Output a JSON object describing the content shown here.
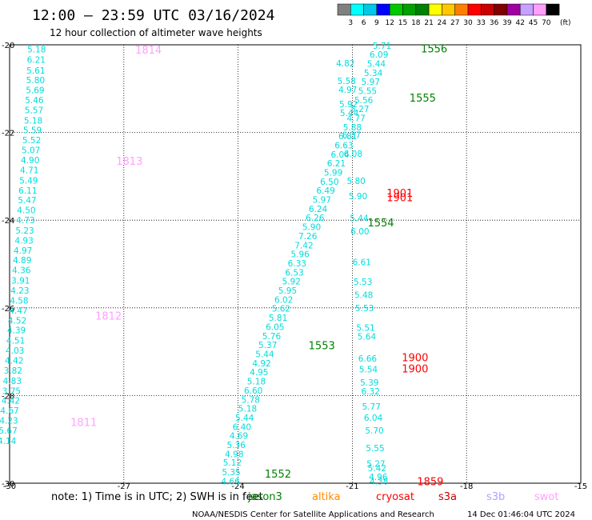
{
  "header": {
    "title": "12:00 – 23:59 UTC 03/16/2024",
    "subtitle": "12 hour collection of altimeter wave heights"
  },
  "legend": {
    "colors": [
      "#808080",
      "#00ffff",
      "#00c8e6",
      "#0000ff",
      "#00c800",
      "#00a000",
      "#008000",
      "#ffff00",
      "#ffc800",
      "#ff8000",
      "#ff0000",
      "#c80000",
      "#800000",
      "#a000a0",
      "#c8a0ff",
      "#ffa0ff",
      "#000000"
    ],
    "labels": [
      "3",
      "6",
      "9",
      "12",
      "15",
      "18",
      "21",
      "24",
      "27",
      "30",
      "33",
      "36",
      "39",
      "42",
      "45",
      "70"
    ],
    "unit": "(ft)"
  },
  "footer": {
    "note": "note:  1) Time is in UTC; 2) SWH is in feet",
    "credit": "NOAA/NESDIS Center for Satellite Applications and Research",
    "timestamp": "14 Dec 01:46:04 UTC 2024",
    "satellites": [
      {
        "name": "jason3",
        "color": "#008000"
      },
      {
        "name": "altika",
        "color": "#ff8c00"
      },
      {
        "name": "cryosat",
        "color": "#ff0000"
      },
      {
        "name": "s3a",
        "color": "#c80000"
      },
      {
        "name": "s3b",
        "color": "#b4a0ff"
      },
      {
        "name": "swot",
        "color": "#ffa0ff"
      }
    ]
  },
  "chart_data": {
    "type": "scatter",
    "title": "12:00 – 23:59 UTC 03/16/2024",
    "subtitle": "12 hour collection of altimeter wave heights",
    "xlim": [
      -30,
      -15
    ],
    "ylim": [
      -30,
      -20
    ],
    "x_ticks": [
      "-30",
      "-27",
      "-24",
      "-21",
      "-18",
      "-15"
    ],
    "y_ticks": [
      "-20",
      "-22",
      "-24",
      "-26",
      "-28",
      "-30"
    ],
    "grid": true,
    "series": [
      {
        "name": "swot",
        "color": "#00dcdc",
        "points": [
          [
            -29.29,
            -20.1,
            "5.18"
          ],
          [
            -29.3,
            -20.34,
            "6.21"
          ],
          [
            -29.31,
            -20.58,
            "5.61"
          ],
          [
            -29.32,
            -20.8,
            "5.80"
          ],
          [
            -29.33,
            -21.03,
            "5.69"
          ],
          [
            -29.35,
            -21.26,
            "5.46"
          ],
          [
            -29.36,
            -21.49,
            "5.57"
          ],
          [
            -29.38,
            -21.72,
            "5.18"
          ],
          [
            -29.4,
            -21.94,
            "5.59"
          ],
          [
            -29.42,
            -22.17,
            "5.52"
          ],
          [
            -29.44,
            -22.4,
            "5.07"
          ],
          [
            -29.46,
            -22.63,
            "4.90"
          ],
          [
            -29.48,
            -22.86,
            "4.71"
          ],
          [
            -29.5,
            -23.09,
            "5.49"
          ],
          [
            -29.52,
            -23.32,
            "6.11"
          ],
          [
            -29.54,
            -23.54,
            "5.47"
          ],
          [
            -29.56,
            -23.77,
            "4.50"
          ],
          [
            -29.58,
            -24.0,
            "4.73"
          ],
          [
            -29.6,
            -24.23,
            "5.23"
          ],
          [
            -29.62,
            -24.46,
            "4.93"
          ],
          [
            -29.65,
            -24.69,
            "4.97"
          ],
          [
            -29.67,
            -24.91,
            "4.89"
          ],
          [
            -29.69,
            -25.14,
            "4.36"
          ],
          [
            -29.71,
            -25.37,
            "3.91"
          ],
          [
            -29.73,
            -25.6,
            "4.23"
          ],
          [
            -29.75,
            -25.83,
            "4.58"
          ],
          [
            -29.77,
            -26.06,
            "4.47"
          ],
          [
            -29.8,
            -26.29,
            "4.52"
          ],
          [
            -29.82,
            -26.51,
            "4.39"
          ],
          [
            -29.84,
            -26.74,
            "4.51"
          ],
          [
            -29.86,
            -26.97,
            "4.03"
          ],
          [
            -29.88,
            -27.2,
            "4.42"
          ],
          [
            -29.91,
            -27.43,
            "3.82"
          ],
          [
            -29.93,
            -27.66,
            "4.83"
          ],
          [
            -29.95,
            -27.89,
            "3.75"
          ],
          [
            -29.97,
            -28.11,
            "4.42"
          ],
          [
            -30.0,
            -28.34,
            "4.67"
          ],
          [
            -30.02,
            -28.57,
            "4.23"
          ],
          [
            -30.04,
            -28.8,
            "5.67"
          ],
          [
            -30.07,
            -29.03,
            "4.14"
          ]
        ]
      },
      {
        "name": "pass 1552-1554",
        "color": "#00dcdc",
        "points": [
          [
            -24.2,
            -29.95,
            "4.66"
          ],
          [
            -24.18,
            -29.74,
            "5.35"
          ],
          [
            -24.15,
            -29.53,
            "5.12"
          ],
          [
            -24.1,
            -29.33,
            "4.98"
          ],
          [
            -24.05,
            -29.12,
            "5.36"
          ],
          [
            -23.98,
            -28.91,
            "4.69"
          ],
          [
            -23.9,
            -28.71,
            "6.40"
          ],
          [
            -23.83,
            -28.5,
            "5.44"
          ],
          [
            -23.75,
            -28.29,
            "5.18"
          ],
          [
            -23.67,
            -28.09,
            "5.78"
          ],
          [
            -23.6,
            -27.88,
            "6.60"
          ],
          [
            -23.52,
            -27.67,
            "5.18"
          ],
          [
            -23.45,
            -27.46,
            "4.95"
          ],
          [
            -23.38,
            -27.26,
            "4.92"
          ],
          [
            -23.3,
            -27.05,
            "5.44"
          ],
          [
            -23.22,
            -26.84,
            "5.37"
          ],
          [
            -23.12,
            -26.64,
            "5.76"
          ],
          [
            -23.03,
            -26.43,
            "6.05"
          ],
          [
            -22.95,
            -26.22,
            "5.81"
          ],
          [
            -22.87,
            -26.01,
            "5.62"
          ],
          [
            -22.8,
            -25.81,
            "6.02"
          ],
          [
            -22.7,
            -25.6,
            "5.95"
          ],
          [
            -22.6,
            -25.39,
            "5.92"
          ],
          [
            -22.52,
            -25.19,
            "6.53"
          ],
          [
            -22.45,
            -24.98,
            "6.33"
          ],
          [
            -22.37,
            -24.77,
            "5.96"
          ],
          [
            -22.27,
            -24.57,
            "7.42"
          ],
          [
            -22.17,
            -24.36,
            "7.26"
          ],
          [
            -22.07,
            -24.15,
            "5.90"
          ],
          [
            -21.98,
            -23.94,
            "6.26"
          ],
          [
            -21.9,
            -23.74,
            "6.24"
          ],
          [
            -21.8,
            -23.53,
            "5.97"
          ],
          [
            -21.7,
            -23.32,
            "6.49"
          ],
          [
            -21.6,
            -23.12,
            "6.50"
          ],
          [
            -21.5,
            -22.91,
            "5.99"
          ],
          [
            -21.42,
            -22.7,
            "6.21"
          ],
          [
            -21.32,
            -22.5,
            "6.04"
          ],
          [
            -21.22,
            -22.29,
            "6.63"
          ],
          [
            -21.12,
            -22.08,
            "6.81"
          ],
          [
            -21.0,
            -21.88,
            "5.88"
          ],
          [
            -20.9,
            -21.67,
            "4.77"
          ],
          [
            -20.8,
            -21.46,
            "5.27"
          ],
          [
            -20.7,
            -21.26,
            "5.56"
          ],
          [
            -20.6,
            -21.05,
            "5.55"
          ],
          [
            -20.52,
            -20.84,
            "5.97"
          ],
          [
            -20.45,
            -20.64,
            "5.34"
          ],
          [
            -20.37,
            -20.43,
            "5.44"
          ],
          [
            -20.3,
            -20.22,
            "6.09"
          ],
          [
            -20.22,
            -20.02,
            "5.71"
          ]
        ]
      },
      {
        "name": "pass 1901/1900/1859",
        "color": "#00dcdc",
        "points": [
          [
            -21.18,
            -20.42,
            "4.82"
          ],
          [
            -21.15,
            -20.82,
            "5.58"
          ],
          [
            -21.12,
            -21.02,
            "4.97"
          ],
          [
            -21.1,
            -21.35,
            "5.92"
          ],
          [
            -21.08,
            -21.55,
            "5.44"
          ],
          [
            -21.02,
            -22.05,
            "6.37"
          ],
          [
            -20.98,
            -22.48,
            "6.08"
          ],
          [
            -20.9,
            -23.1,
            "5.80"
          ],
          [
            -20.85,
            -23.45,
            "5.90"
          ],
          [
            -20.82,
            -23.95,
            "5.44"
          ],
          [
            -20.8,
            -24.25,
            "6.00"
          ],
          [
            -20.75,
            -24.95,
            "6.61"
          ],
          [
            -20.72,
            -25.4,
            "5.53"
          ],
          [
            -20.7,
            -25.7,
            "5.48"
          ],
          [
            -20.68,
            -26.0,
            "5.53"
          ],
          [
            -20.65,
            -26.45,
            "5.51"
          ],
          [
            -20.62,
            -26.65,
            "5.64"
          ],
          [
            -20.6,
            -27.15,
            "6.66"
          ],
          [
            -20.58,
            -27.4,
            "5.54"
          ],
          [
            -20.55,
            -27.7,
            "5.39"
          ],
          [
            -20.52,
            -27.9,
            "6.32"
          ],
          [
            -20.5,
            -28.25,
            "5.77"
          ],
          [
            -20.45,
            -28.5,
            "6.04"
          ],
          [
            -20.42,
            -28.8,
            "5.70"
          ],
          [
            -20.4,
            -29.2,
            "5.55"
          ],
          [
            -20.38,
            -29.55,
            "5.27"
          ],
          [
            -20.35,
            -29.65,
            "5.42"
          ],
          [
            -20.32,
            -29.85,
            "4.96"
          ],
          [
            -20.3,
            -29.95,
            "4.38"
          ]
        ]
      }
    ],
    "annotations": [
      {
        "text": "1814",
        "x": -26.7,
        "y": -20.11,
        "color": "#ffa0ff"
      },
      {
        "text": "1813",
        "x": -27.2,
        "y": -22.65,
        "color": "#ffa0ff"
      },
      {
        "text": "1812",
        "x": -27.75,
        "y": -26.18,
        "color": "#ffa0ff"
      },
      {
        "text": "1811",
        "x": -28.4,
        "y": -28.6,
        "color": "#ffa0ff"
      },
      {
        "text": "1556",
        "x": -19.2,
        "y": -20.08,
        "color": "#008000"
      },
      {
        "text": "1555",
        "x": -19.5,
        "y": -21.2,
        "color": "#008000"
      },
      {
        "text": "1554",
        "x": -20.6,
        "y": -24.05,
        "color": "#008000"
      },
      {
        "text": "1553",
        "x": -22.15,
        "y": -26.85,
        "color": "#008000"
      },
      {
        "text": "1552",
        "x": -23.3,
        "y": -29.78,
        "color": "#008000"
      },
      {
        "text": "1901",
        "x": -20.1,
        "y": -23.38,
        "color": "#ff0000"
      },
      {
        "text": "1901",
        "x": -20.1,
        "y": -23.48,
        "color": "#ff0000"
      },
      {
        "text": "1900",
        "x": -19.7,
        "y": -27.13,
        "color": "#ff0000"
      },
      {
        "text": "1900",
        "x": -19.7,
        "y": -27.38,
        "color": "#ff0000"
      },
      {
        "text": "1859",
        "x": -19.3,
        "y": -29.95,
        "color": "#ff0000"
      }
    ]
  }
}
